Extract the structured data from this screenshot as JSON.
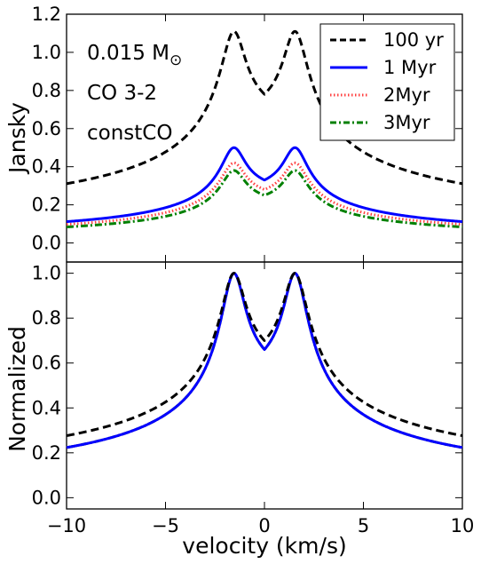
{
  "chart_data": [
    {
      "type": "line",
      "panel": "top",
      "ylabel": "Jansky",
      "xlim": [
        -10,
        10
      ],
      "ylim": [
        -0.1,
        1.2
      ],
      "y_ticks": [
        0.0,
        0.2,
        0.4,
        0.6,
        0.8,
        1.0,
        1.2
      ],
      "y_tick_labels": [
        "0.0",
        "0.2",
        "0.4",
        "0.6",
        "0.8",
        "1.0",
        "1.2"
      ],
      "annotations": [
        {
          "text": "0.015 M",
          "sub": "⊙"
        },
        {
          "text": "CO 3-2"
        },
        {
          "text": "constCO"
        }
      ],
      "legend": {
        "placement": "top-right",
        "entries": [
          {
            "name": "100 yr",
            "color": "#000000",
            "style": "dashed"
          },
          {
            "name": "1 Myr",
            "color": "#0000ff",
            "style": "solid"
          },
          {
            "name": "2Myr",
            "color": "#ff4040",
            "style": "dotted"
          },
          {
            "name": "3Myr",
            "color": "#008000",
            "style": "dashdot"
          }
        ]
      },
      "series": [
        {
          "key": "100yr",
          "color": "#000000",
          "style": "dashed",
          "peak": 1.11,
          "dip": 0.78
        },
        {
          "key": "1Myr",
          "color": "#0000ff",
          "style": "solid",
          "peak": 0.5,
          "dip": 0.33
        },
        {
          "key": "2Myr",
          "color": "#ff4040",
          "style": "dotted",
          "peak": 0.42,
          "dip": 0.28
        },
        {
          "key": "3Myr",
          "color": "#008000",
          "style": "dashdot",
          "peak": 0.38,
          "dip": 0.25
        }
      ]
    },
    {
      "type": "line",
      "panel": "bottom",
      "xlabel": "velocity (km/s)",
      "ylabel": "Normalized",
      "xlim": [
        -10,
        10
      ],
      "ylim": [
        -0.05,
        1.05
      ],
      "x_ticks": [
        -10,
        -5,
        0,
        5,
        10
      ],
      "x_tick_labels": [
        "−10",
        "−5",
        "0",
        "5",
        "10"
      ],
      "y_ticks": [
        0.0,
        0.2,
        0.4,
        0.6,
        0.8,
        1.0
      ],
      "y_tick_labels": [
        "0.0",
        "0.2",
        "0.4",
        "0.6",
        "0.8",
        "1.0"
      ],
      "series": [
        {
          "key": "100yr",
          "color": "#000000",
          "style": "dashed",
          "peak": 1.0,
          "dip": 0.7
        },
        {
          "key": "1Myr",
          "color": "#0000ff",
          "style": "solid",
          "peak": 1.0,
          "dip": 0.66
        },
        {
          "key": "2Myr",
          "color": "#ff4040",
          "style": "dotted",
          "peak": 1.0,
          "dip": 0.66
        },
        {
          "key": "3Myr",
          "color": "#008000",
          "style": "dashdot",
          "peak": 1.0,
          "dip": 0.66
        }
      ]
    }
  ]
}
